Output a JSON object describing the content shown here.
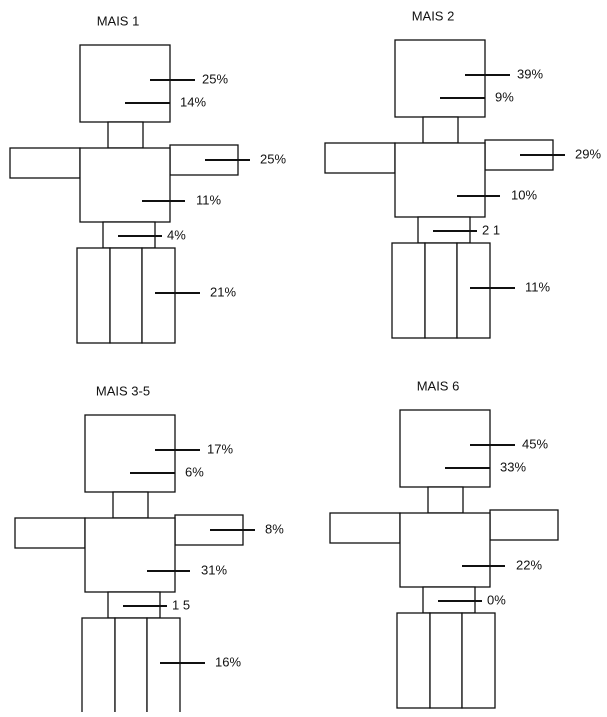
{
  "figures": [
    {
      "title": "MAIS 1",
      "head": "25%",
      "neck": "14%",
      "arm": "25%",
      "torso": "11%",
      "waist": "4%",
      "legs": "21%"
    },
    {
      "title": "MAIS 2",
      "head": "39%",
      "neck": "9%",
      "arm": "29%",
      "torso": "10%",
      "waist": "2 1",
      "legs": "11%"
    },
    {
      "title": "MAIS 3-5",
      "head": "17%",
      "neck": "6%",
      "arm": "8%",
      "torso": "31%",
      "waist": "1 5",
      "legs": "16%"
    },
    {
      "title": "MAIS 6",
      "head": "45%",
      "neck": "33%",
      "arm": "",
      "torso": "22%",
      "waist": "0%",
      "legs": ""
    }
  ]
}
